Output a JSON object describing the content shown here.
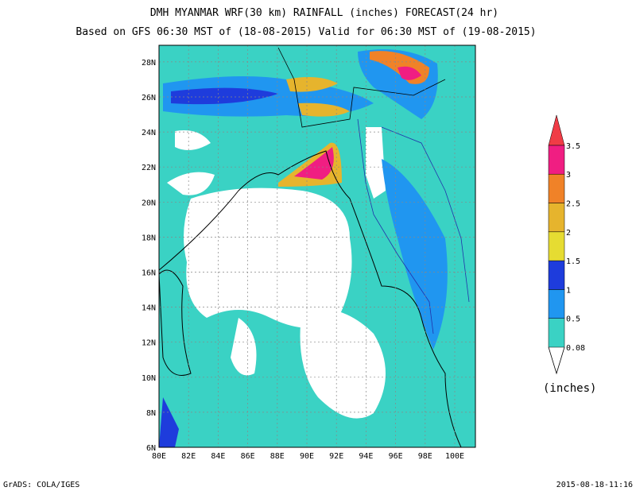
{
  "map": {
    "title": "DMH MYANMAR WRF(30 km) RAINFALL (inches) FORECAST(24 hr)",
    "subtitle": "Based on GFS 06:30 MST of (18-08-2015) Valid for 06:30 MST of (19-08-2015)",
    "lon_labels": [
      "80E",
      "82E",
      "84E",
      "86E",
      "88E",
      "90E",
      "92E",
      "94E",
      "96E",
      "98E",
      "100E"
    ],
    "lat_labels": [
      "6N",
      "8N",
      "10N",
      "12N",
      "14N",
      "16N",
      "18N",
      "20N",
      "22N",
      "24N",
      "26N",
      "28N"
    ],
    "legend": {
      "labels": [
        "0.08",
        "0.5",
        "1",
        "1.5",
        "2",
        "2.5",
        "3",
        "3.5"
      ],
      "colors": [
        "#3ad2c4",
        "#2096f0",
        "#1e3cdc",
        "#e6dc32",
        "#e6b42d",
        "#f08228",
        "#f01e82",
        "#f03c46"
      ],
      "unit": "(inches)"
    },
    "footer_left": "GrADS: COLA/IGES",
    "footer_right": "2015-08-18-11:16"
  }
}
